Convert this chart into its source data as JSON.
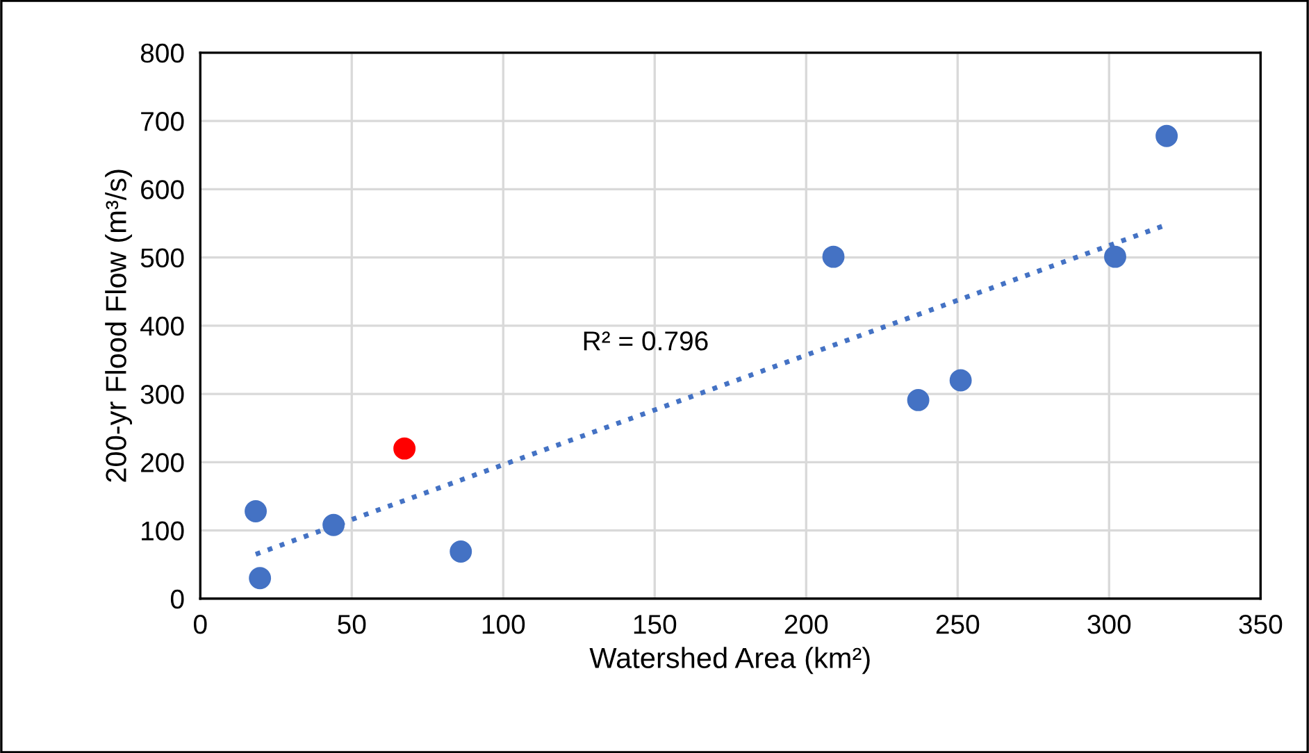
{
  "chart_data": {
    "type": "scatter",
    "xlabel": "Watershed Area (km²)",
    "ylabel": "200-yr Flood Flow (m³/s)",
    "xlim": [
      0,
      350
    ],
    "ylim": [
      0,
      800
    ],
    "xticks": [
      0,
      50,
      100,
      150,
      200,
      250,
      300,
      350
    ],
    "yticks": [
      0,
      100,
      200,
      300,
      400,
      500,
      600,
      700,
      800
    ],
    "grid": true,
    "marker": "circle",
    "legend": false,
    "annotations": [
      "R² = 0.796"
    ],
    "series": [
      {
        "color": "#4472c4",
        "x": [
          18.3,
          19.7,
          44,
          86,
          209,
          237,
          251,
          302,
          319
        ],
        "values": [
          128,
          30,
          108,
          69,
          501,
          291,
          320,
          501,
          678
        ]
      },
      {
        "color": "#ff0000",
        "x": [
          67.4
        ],
        "values": [
          220
        ]
      },
      {
        "type": "line",
        "line_style": "dotted",
        "marker": "none",
        "color": "#4472c4",
        "x": [
          18.3,
          319
        ],
        "values": [
          65,
          548
        ]
      }
    ]
  }
}
